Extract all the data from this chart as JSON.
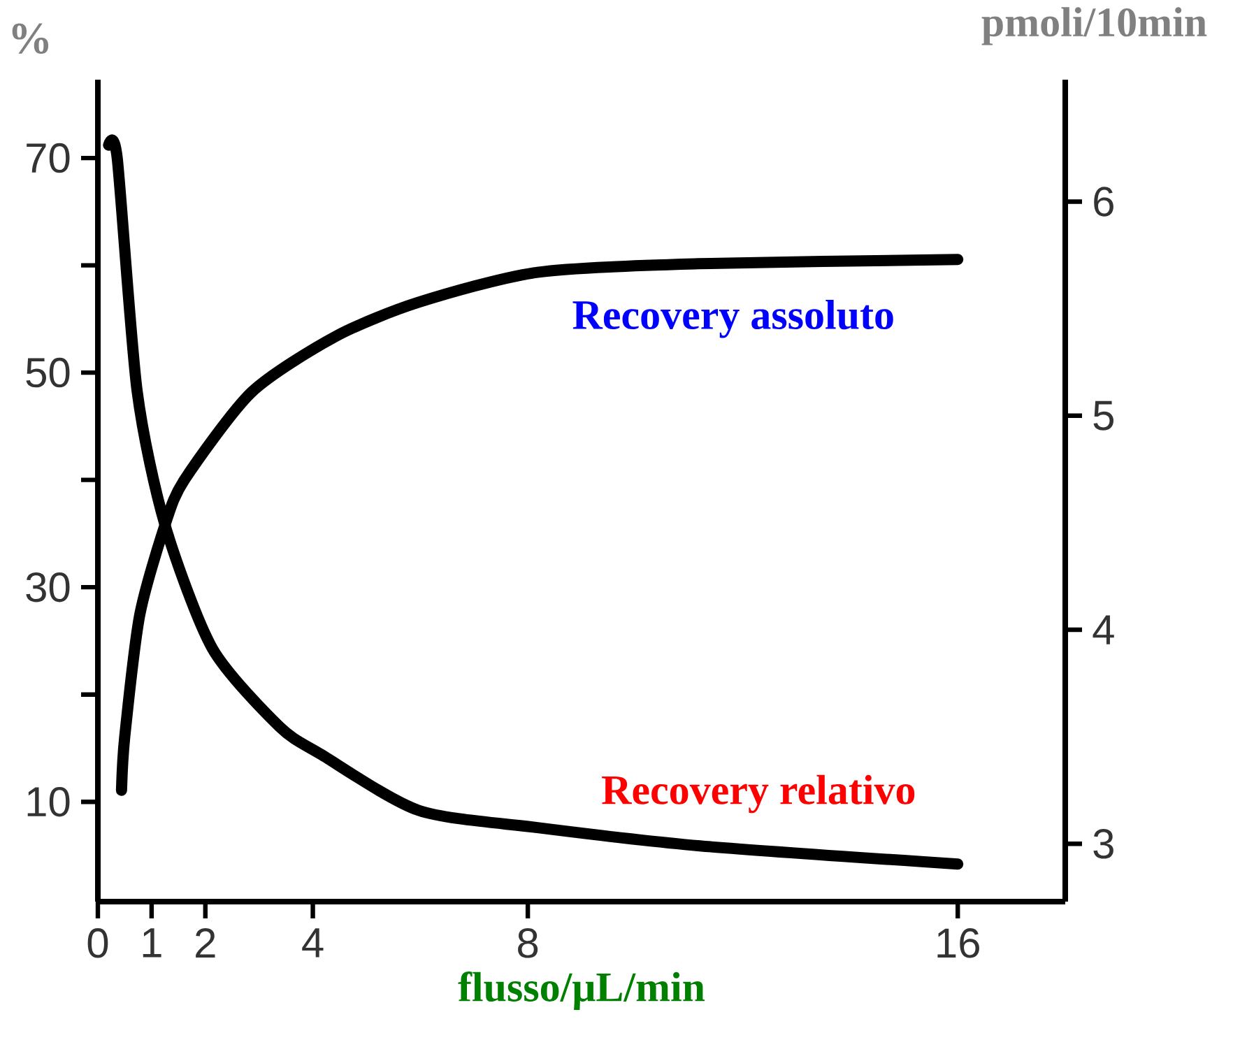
{
  "chart_data": {
    "type": "line",
    "xlabel": "flusso/μL/min",
    "ylabel": "%",
    "y2label": "pmoli/10min",
    "xlim": [
      0,
      18
    ],
    "xticks": [
      0,
      1,
      2,
      4,
      8,
      16
    ],
    "ylim": [
      0.7,
      77.3
    ],
    "yticks": [
      10,
      {
        "value": 20,
        "label": null
      },
      30,
      {
        "value": 40,
        "label": null
      },
      50,
      {
        "value": 60,
        "label": null
      },
      70
    ],
    "y2lim": [
      2.73,
      6.57
    ],
    "y2ticks": [
      3,
      4,
      5,
      6
    ],
    "grid": false,
    "legend": false,
    "marker": "none",
    "line_style": "solid",
    "series": [
      {
        "name": "Recovery relativo",
        "color": "#000000",
        "x": [
          0.2,
          0.36,
          0.73,
          1.25,
          2.13,
          3.38,
          4.16,
          5.97,
          8.18,
          11.2,
          16
        ],
        "values": [
          71.2,
          70,
          48.3,
          35.8,
          24.3,
          17,
          14.4,
          9.2,
          7.6,
          5.9,
          4.2
        ]
      },
      {
        "name": "Recovery assoluto",
        "color": "#000000",
        "axis": "y2",
        "x": [
          0.44,
          0.5,
          0.78,
          1.25,
          1.61,
          2.86,
          4.42,
          5.97,
          8.18,
          11.17,
          16
        ],
        "values": [
          3.25,
          3.5,
          4.07,
          4.49,
          4.7,
          5.11,
          5.37,
          5.53,
          5.67,
          5.71,
          5.73
        ]
      }
    ]
  }
}
